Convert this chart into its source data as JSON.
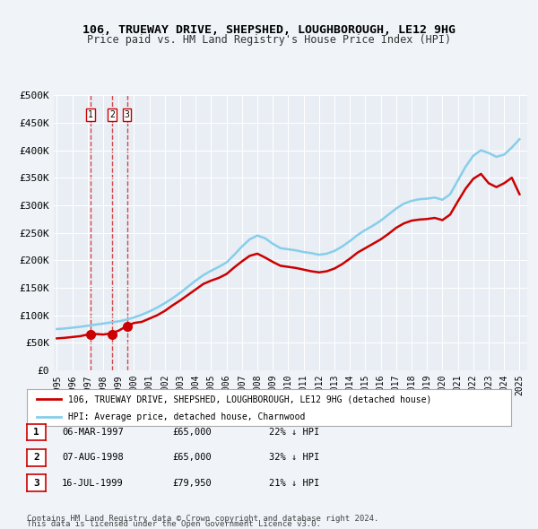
{
  "title": "106, TRUEWAY DRIVE, SHEPSHED, LOUGHBOROUGH, LE12 9HG",
  "subtitle": "Price paid vs. HM Land Registry's House Price Index (HPI)",
  "ylabel": "",
  "ylim": [
    0,
    500000
  ],
  "yticks": [
    0,
    50000,
    100000,
    150000,
    200000,
    250000,
    300000,
    350000,
    400000,
    450000,
    500000
  ],
  "ytick_labels": [
    "£0",
    "£50K",
    "£100K",
    "£150K",
    "£200K",
    "£250K",
    "£300K",
    "£350K",
    "£400K",
    "£450K",
    "£500K"
  ],
  "legend_line1": "106, TRUEWAY DRIVE, SHEPSHED, LOUGHBOROUGH, LE12 9HG (detached house)",
  "legend_line2": "HPI: Average price, detached house, Charnwood",
  "transactions": [
    {
      "label": "1",
      "date": "06-MAR-1997",
      "price": "£65,000",
      "hpi": "22% ↓ HPI",
      "x": 1997.18
    },
    {
      "label": "2",
      "date": "07-AUG-1998",
      "price": "£65,000",
      "hpi": "32% ↓ HPI",
      "x": 1998.6
    },
    {
      "label": "3",
      "date": "16-JUL-1999",
      "price": "£79,950",
      "hpi": "21% ↓ HPI",
      "x": 1999.54
    }
  ],
  "transaction_prices": [
    65000,
    65000,
    79950
  ],
  "footnote1": "Contains HM Land Registry data © Crown copyright and database right 2024.",
  "footnote2": "This data is licensed under the Open Government Licence v3.0.",
  "hpi_color": "#87CEEB",
  "price_color": "#cc0000",
  "background_color": "#f0f4f8",
  "plot_bg_color": "#e8eef4",
  "grid_color": "#ffffff",
  "hpi_x": [
    1995,
    1995.5,
    1996,
    1996.5,
    1997,
    1997.5,
    1998,
    1998.5,
    1999,
    1999.5,
    2000,
    2000.5,
    2001,
    2001.5,
    2002,
    2002.5,
    2003,
    2003.5,
    2004,
    2004.5,
    2005,
    2005.5,
    2006,
    2006.5,
    2007,
    2007.5,
    2008,
    2008.5,
    2009,
    2009.5,
    2010,
    2010.5,
    2011,
    2011.5,
    2012,
    2012.5,
    2013,
    2013.5,
    2014,
    2014.5,
    2015,
    2015.5,
    2016,
    2016.5,
    2017,
    2017.5,
    2018,
    2018.5,
    2019,
    2019.5,
    2020,
    2020.5,
    2021,
    2021.5,
    2022,
    2022.5,
    2023,
    2023.5,
    2024,
    2024.5,
    2025
  ],
  "hpi_y": [
    75000,
    76000,
    77500,
    79000,
    81000,
    83000,
    85000,
    87000,
    89000,
    92000,
    96000,
    101000,
    107000,
    114000,
    122000,
    131000,
    141000,
    152000,
    163000,
    173000,
    181000,
    188000,
    196000,
    210000,
    225000,
    238000,
    245000,
    240000,
    230000,
    222000,
    220000,
    218000,
    215000,
    213000,
    210000,
    212000,
    217000,
    225000,
    235000,
    246000,
    255000,
    263000,
    272000,
    283000,
    294000,
    303000,
    308000,
    311000,
    312000,
    314000,
    310000,
    320000,
    345000,
    370000,
    390000,
    400000,
    395000,
    388000,
    392000,
    405000,
    420000
  ],
  "price_x": [
    1995,
    1995.5,
    1996,
    1996.5,
    1997,
    1997.5,
    1998,
    1998.5,
    1999,
    1999.5,
    2000,
    2000.5,
    2001,
    2001.5,
    2002,
    2002.5,
    2003,
    2003.5,
    2004,
    2004.5,
    2005,
    2005.5,
    2006,
    2006.5,
    2007,
    2007.5,
    2008,
    2008.5,
    2009,
    2009.5,
    2010,
    2010.5,
    2011,
    2011.5,
    2012,
    2012.5,
    2013,
    2013.5,
    2014,
    2014.5,
    2015,
    2015.5,
    2016,
    2016.5,
    2017,
    2017.5,
    2018,
    2018.5,
    2019,
    2019.5,
    2020,
    2020.5,
    2021,
    2021.5,
    2022,
    2022.5,
    2023,
    2023.5,
    2024,
    2024.5,
    2025
  ],
  "price_y": [
    58000,
    59000,
    60500,
    62000,
    65000,
    66000,
    65000,
    67000,
    72000,
    79950,
    86000,
    88000,
    94000,
    100000,
    108000,
    118000,
    127000,
    137000,
    147000,
    157000,
    163000,
    168000,
    175000,
    187000,
    198000,
    208000,
    212000,
    205000,
    197000,
    190000,
    188000,
    186000,
    183000,
    180000,
    178000,
    180000,
    185000,
    193000,
    203000,
    214000,
    222000,
    230000,
    238000,
    248000,
    259000,
    267000,
    272000,
    274000,
    275000,
    277000,
    273000,
    283000,
    307000,
    330000,
    348000,
    357000,
    340000,
    333000,
    340000,
    350000,
    320000
  ],
  "xlim": [
    1994.8,
    2025.5
  ],
  "xticks": [
    1995,
    1996,
    1997,
    1998,
    1999,
    2000,
    2001,
    2002,
    2003,
    2004,
    2005,
    2006,
    2007,
    2008,
    2009,
    2010,
    2011,
    2012,
    2013,
    2014,
    2015,
    2016,
    2017,
    2018,
    2019,
    2020,
    2021,
    2022,
    2023,
    2024,
    2025
  ]
}
